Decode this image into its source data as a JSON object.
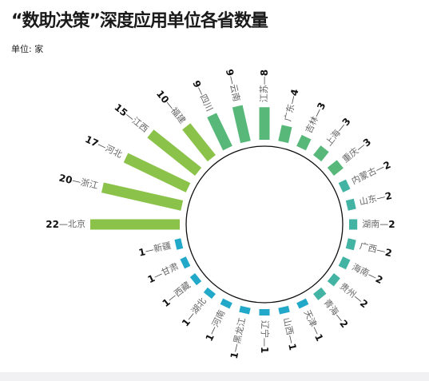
{
  "header": {
    "title": "“数助决策”深度应用单位各省数量",
    "unit": "单位: 家"
  },
  "chart_data": {
    "type": "radial-bar",
    "title": "“数助决策”深度应用单位各省数量",
    "unit_label": "单位: 家",
    "categories": [
      "北京",
      "浙江",
      "河北",
      "江西",
      "福建",
      "四川",
      "云南",
      "江苏",
      "广东",
      "吉林",
      "上海",
      "重庆",
      "内蒙古",
      "山东",
      "湖南",
      "广西",
      "海南",
      "贵州",
      "青海",
      "天津",
      "山西",
      "辽宁",
      "黑龙江",
      "河南",
      "湖北",
      "西藏",
      "甘肃",
      "新疆"
    ],
    "values": [
      22,
      20,
      17,
      15,
      10,
      9,
      9,
      8,
      4,
      3,
      3,
      3,
      2,
      2,
      2,
      2,
      2,
      2,
      2,
      1,
      1,
      1,
      1,
      1,
      1,
      1,
      1,
      1
    ],
    "colors": {
      "large": "#8bc34a",
      "medium": "#57b87a",
      "small": "#43b3a4",
      "smallest": "#22a9c9"
    }
  }
}
